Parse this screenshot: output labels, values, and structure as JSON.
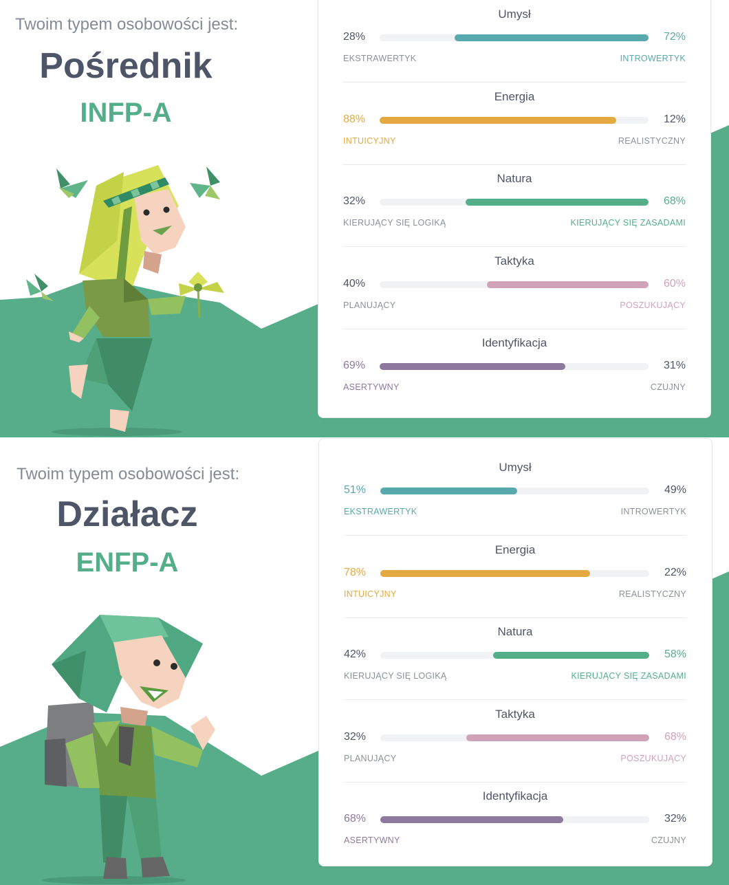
{
  "results": [
    {
      "intro": "Twoim typem osobowości jest:",
      "type_name": "Pośrednik",
      "type_code": "INFP-A",
      "character": "mediator-character",
      "traits": [
        {
          "title": "Umysł",
          "left_pct": "28%",
          "right_pct": "72%",
          "left_label": "EKSTRAWERTYK",
          "right_label": "INTROWERTYK",
          "dominant": "right",
          "value": 0.72,
          "color": "#58a9ac"
        },
        {
          "title": "Energia",
          "left_pct": "88%",
          "right_pct": "12%",
          "left_label": "INTUICYJNY",
          "right_label": "REALISTYCZNY",
          "dominant": "left",
          "value": 0.88,
          "color": "#e4a940"
        },
        {
          "title": "Natura",
          "left_pct": "32%",
          "right_pct": "68%",
          "left_label": "KIERUJĄCY SIĘ LOGIKĄ",
          "right_label": "KIERUJĄCY SIĘ ZASADAMI",
          "dominant": "right",
          "value": 0.68,
          "color": "#55ae8a"
        },
        {
          "title": "Taktyka",
          "left_pct": "40%",
          "right_pct": "60%",
          "left_label": "PLANUJĄCY",
          "right_label": "POSZUKUJĄCY",
          "dominant": "right",
          "value": 0.6,
          "color": "#d0a2b8"
        },
        {
          "title": "Identyfikacja",
          "left_pct": "69%",
          "right_pct": "31%",
          "left_label": "ASERTYWNY",
          "right_label": "CZUJNY",
          "dominant": "left",
          "value": 0.69,
          "color": "#8d789e"
        }
      ]
    },
    {
      "intro": "Twoim typem osobowości jest:",
      "type_name": "Działacz",
      "type_code": "ENFP-A",
      "character": "campaigner-character",
      "traits": [
        {
          "title": "Umysł",
          "left_pct": "51%",
          "right_pct": "49%",
          "left_label": "EKSTRAWERTYK",
          "right_label": "INTROWERTYK",
          "dominant": "left",
          "value": 0.51,
          "color": "#58a9ac"
        },
        {
          "title": "Energia",
          "left_pct": "78%",
          "right_pct": "22%",
          "left_label": "INTUICYJNY",
          "right_label": "REALISTYCZNY",
          "dominant": "left",
          "value": 0.78,
          "color": "#e4a940"
        },
        {
          "title": "Natura",
          "left_pct": "42%",
          "right_pct": "58%",
          "left_label": "KIERUJĄCY SIĘ LOGIKĄ",
          "right_label": "KIERUJĄCY SIĘ ZASADAMI",
          "dominant": "right",
          "value": 0.58,
          "color": "#55ae8a"
        },
        {
          "title": "Taktyka",
          "left_pct": "32%",
          "right_pct": "68%",
          "left_label": "PLANUJĄCY",
          "right_label": "POSZUKUJĄCY",
          "dominant": "right",
          "value": 0.68,
          "color": "#d0a2b8"
        },
        {
          "title": "Identyfikacja",
          "left_pct": "68%",
          "right_pct": "32%",
          "left_label": "ASERTYWNY",
          "right_label": "CZUJNY",
          "dominant": "left",
          "value": 0.68,
          "color": "#8d789e"
        }
      ]
    }
  ],
  "colors": {
    "hill": "#57ad8a",
    "heading": "#4e5567",
    "code": "#55ae8a"
  }
}
